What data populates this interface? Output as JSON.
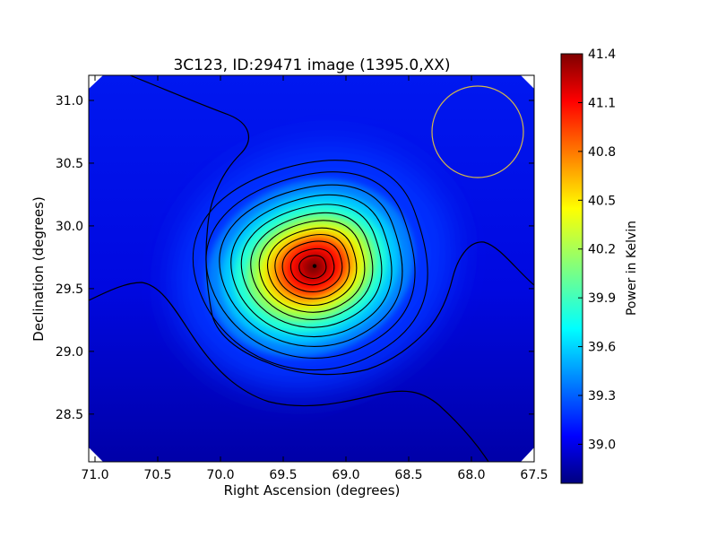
{
  "chart_data": {
    "type": "heatmap",
    "title": "3C123, ID:29471 image (1395.0,XX)",
    "xlabel": "Right Ascension (degrees)",
    "ylabel": "Declination (degrees)",
    "x_ticks": [
      "71.0",
      "70.5",
      "70.0",
      "69.5",
      "69.0",
      "68.5",
      "68.0",
      "67.5"
    ],
    "y_ticks": [
      "28.5",
      "29.0",
      "29.5",
      "30.0",
      "30.5",
      "31.0"
    ],
    "xlim": [
      71.05,
      67.5
    ],
    "ylim": [
      28.12,
      31.2
    ],
    "source_peak": {
      "ra": 69.25,
      "dec": 29.68,
      "value": 41.4
    },
    "background_level": 38.95,
    "colormap": "jet",
    "contours": "black, 12 levels around source",
    "beam_circle": {
      "ra": 67.95,
      "dec": 30.75,
      "color": "#d4b84a"
    },
    "colorbar": {
      "label": "Power in Kelvin",
      "range": [
        38.76,
        41.4
      ],
      "ticks": [
        "39.0",
        "39.3",
        "39.6",
        "39.9",
        "40.2",
        "40.5",
        "40.8",
        "41.1",
        "41.4"
      ]
    }
  }
}
